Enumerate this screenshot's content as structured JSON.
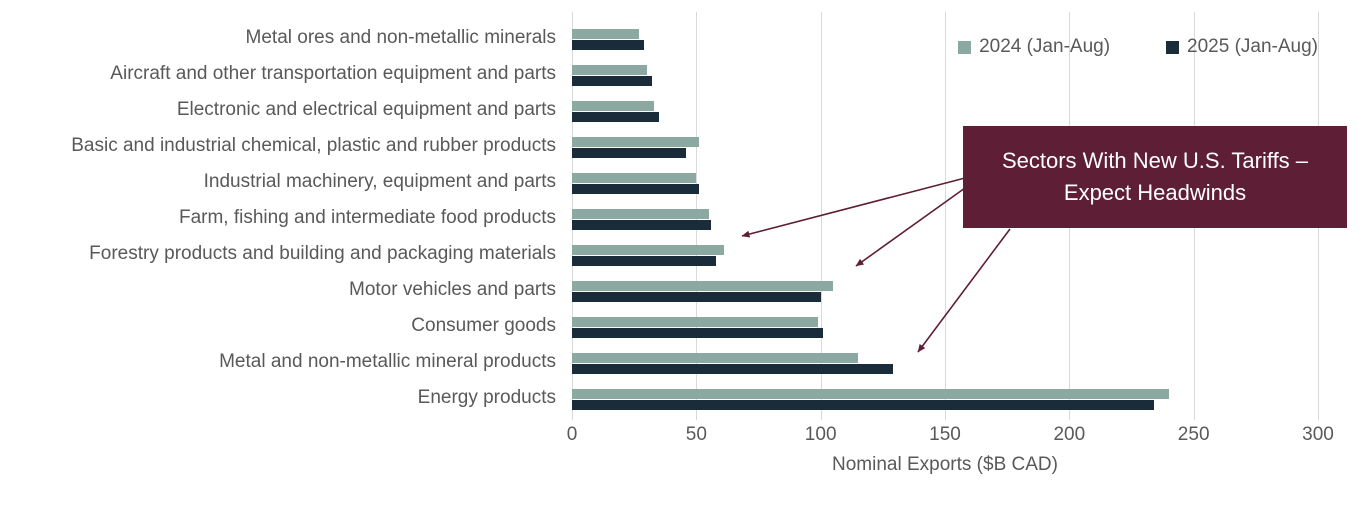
{
  "chart_data": {
    "type": "bar",
    "orientation": "horizontal",
    "categories": [
      "Metal ores and non-metallic minerals",
      "Aircraft and other transportation equipment and parts",
      "Electronic and electrical equipment and parts",
      "Basic and industrial chemical, plastic and rubber products",
      "Industrial machinery, equipment and parts",
      "Farm, fishing and intermediate food products",
      "Forestry products and building and packaging materials",
      "Motor vehicles and parts",
      "Consumer goods",
      "Metal and non-metallic mineral products",
      "Energy products"
    ],
    "series": [
      {
        "name": "2024 (Jan-Aug)",
        "color": "#8BA9A0",
        "values": [
          27,
          30,
          33,
          51,
          50,
          55,
          61,
          105,
          99,
          115,
          240
        ]
      },
      {
        "name": "2025 (Jan-Aug)",
        "color": "#1A2B39",
        "values": [
          29,
          32,
          35,
          46,
          51,
          56,
          58,
          100,
          101,
          129,
          234
        ]
      }
    ],
    "xlabel": "Nominal Exports ($B CAD)",
    "xlim": [
      0,
      300
    ],
    "xticks": [
      0,
      50,
      100,
      150,
      200,
      250,
      300
    ],
    "grid": true,
    "legend_position": "top-right"
  },
  "annotation": {
    "line1": "Sectors With New U.S. Tariffs –",
    "line2": "Expect Headwinds",
    "bg_color": "#5E1F36",
    "text_color": "#FFFFFF",
    "arrow_color": "#5E1F36"
  },
  "colors": {
    "axis_text": "#595959",
    "gridline": "#D9D9D9"
  }
}
